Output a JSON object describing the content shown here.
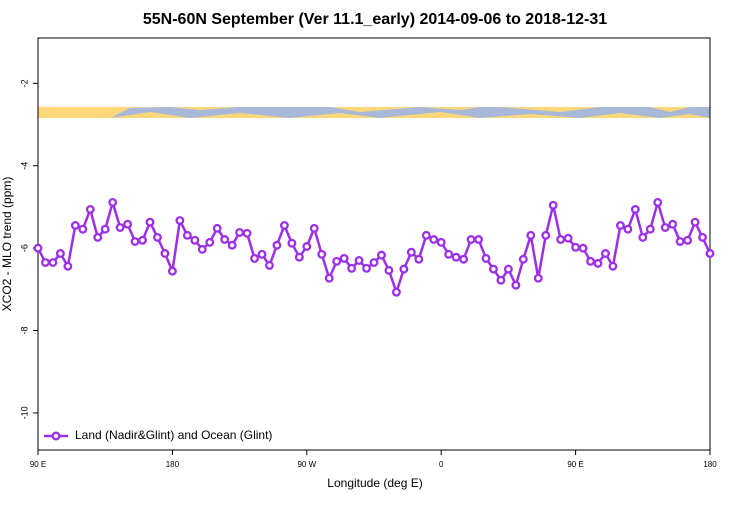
{
  "chart_data": {
    "type": "line",
    "title": "55N-60N September (Ver 11.1_early)   2014-09-06 to 2018-12-31",
    "xlabel": "Longitude (deg E)",
    "ylabel": "XCO2 - MLO trend (ppm)",
    "x": [
      90,
      95,
      100,
      105,
      110,
      115,
      120,
      125,
      130,
      135,
      140,
      145,
      150,
      155,
      160,
      165,
      170,
      175,
      180,
      185,
      190,
      195,
      200,
      205,
      210,
      215,
      220,
      225,
      230,
      235,
      240,
      245,
      250,
      255,
      260,
      265,
      270,
      275,
      280,
      285,
      290,
      295,
      300,
      305,
      310,
      315,
      320,
      325,
      330,
      335,
      340,
      345,
      350,
      355,
      360,
      365,
      370,
      375,
      380,
      385,
      390,
      395,
      400,
      405,
      410,
      415,
      420,
      425,
      430,
      435,
      440,
      445,
      450,
      455,
      460,
      465,
      470,
      475,
      480,
      485,
      490,
      495,
      500,
      505,
      510,
      515,
      520,
      525,
      530,
      535,
      540
    ],
    "series": [
      {
        "name": "Land (Nadir&Glint) and Ocean (Glint)",
        "color": "#9b30e8",
        "values": [
          -6.0,
          -6.35,
          -6.35,
          -6.13,
          -6.44,
          -5.45,
          -5.54,
          -5.06,
          -5.74,
          -5.54,
          -4.89,
          -5.5,
          -5.42,
          -5.84,
          -5.81,
          -5.37,
          -5.74,
          -6.13,
          -6.56,
          -5.33,
          -5.69,
          -5.81,
          -6.03,
          -5.86,
          -5.52,
          -5.79,
          -5.93,
          -5.62,
          -5.64,
          -6.25,
          -6.15,
          -6.42,
          -5.93,
          -5.45,
          -5.88,
          -6.22,
          -5.96,
          -5.52,
          -6.15,
          -6.73,
          -6.32,
          -6.25,
          -6.49,
          -6.3,
          -6.49,
          -6.35,
          -6.17,
          -6.54,
          -7.07,
          -6.51,
          -6.1,
          -6.27,
          -5.69,
          -5.79,
          -5.86,
          -6.15,
          -6.22,
          -6.27,
          -5.79,
          -5.79,
          -6.25,
          -6.51,
          -6.78,
          -6.51,
          -6.9,
          -6.27,
          -5.69,
          -6.73,
          -5.69,
          -4.96,
          -5.79,
          -5.76,
          -5.98,
          -6.0,
          -6.32,
          -6.37,
          -6.13,
          -6.44,
          -5.45,
          -5.54,
          -5.06,
          -5.74,
          -5.54,
          -4.89,
          -5.5,
          -5.42,
          -5.84,
          -5.81,
          -5.37,
          -5.74,
          -6.13
        ]
      }
    ],
    "xlim": [
      90,
      540
    ],
    "xticks": [
      {
        "value": 90,
        "label": "90 E"
      },
      {
        "value": 180,
        "label": "180"
      },
      {
        "value": 270,
        "label": "90 W"
      },
      {
        "value": 360,
        "label": "0"
      },
      {
        "value": 450,
        "label": "90 E"
      },
      {
        "value": 540,
        "label": "180"
      }
    ],
    "ylim": [
      -10.9,
      -0.9
    ],
    "yticks": [
      -10,
      -8,
      -6,
      -4,
      -2
    ],
    "legend": "bottom-left"
  }
}
